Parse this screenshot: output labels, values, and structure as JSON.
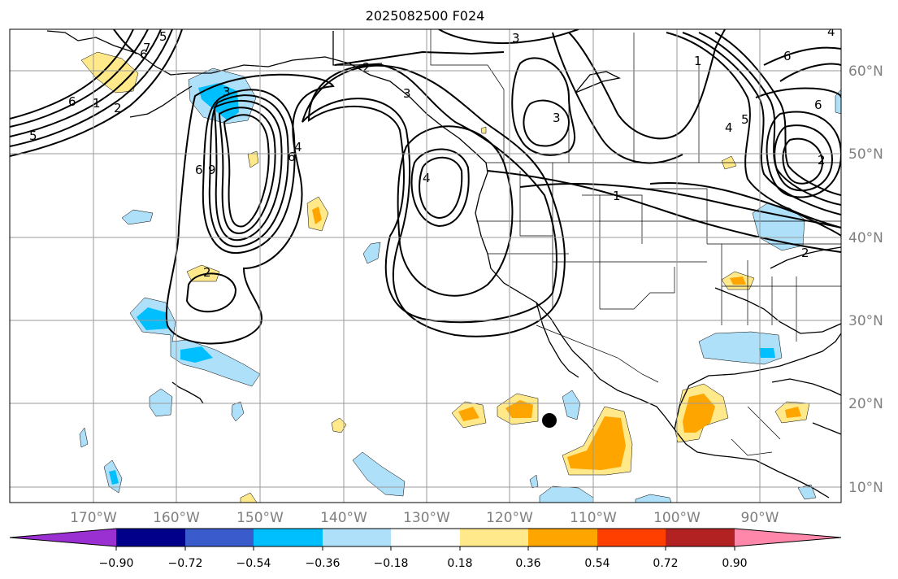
{
  "title": "2025082500 F024",
  "latitude_labels": [
    "60°N",
    "50°N",
    "40°N",
    "30°N",
    "20°N",
    "10°N"
  ],
  "longitude_labels": [
    "170°W",
    "160°W",
    "150°W",
    "140°W",
    "130°W",
    "120°W",
    "110°W",
    "100°W",
    "90°W"
  ],
  "colorbar": {
    "tick_labels": [
      "−0.90",
      "−0.72",
      "−0.54",
      "−0.36",
      "−0.18",
      "0.18",
      "0.36",
      "0.54",
      "0.72",
      "0.90"
    ],
    "colors": [
      "#9b30d2",
      "#00008b",
      "#3a5bcc",
      "#00bfff",
      "#aee0fa",
      "#ffffff",
      "#ffe98a",
      "#ffa500",
      "#ff3f00",
      "#b22222",
      "#ff88aa"
    ]
  },
  "contour_labels": [
    "3",
    "2",
    "6",
    "1",
    "2",
    "6",
    "5",
    "7",
    "5",
    "2",
    "6",
    "3",
    "9",
    "6",
    "4",
    "3",
    "4",
    "1",
    "2",
    "6",
    "3",
    "5",
    "4",
    "1",
    "2",
    "4",
    "6"
  ],
  "colors": {
    "fill_light_blue": "#aee0fa",
    "fill_deep_sky_blue": "#00bfff",
    "fill_light_yellow": "#ffe98a",
    "fill_orange": "#ffa500",
    "gridline": "#9a9a9a",
    "axis_label_grey": "#7f7f7f"
  }
}
